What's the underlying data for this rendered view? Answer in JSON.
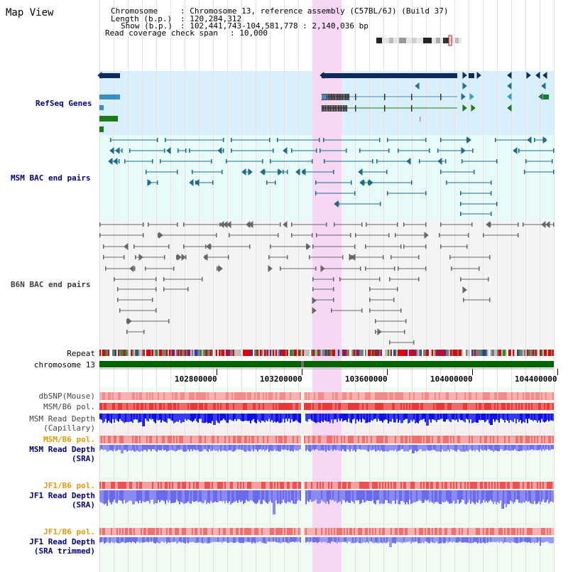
{
  "title": "Map View",
  "info": {
    "chromosome_key": "Chromosome",
    "chromosome_val": ": Chromosome 13, reference assembly (C57BL/6J) (Build 37)",
    "length_key": "Length (b.p.)",
    "length_val": ": 120,284,312",
    "show_key": "Show (b.p.)",
    "show_val": ": 102,441,743-104,581,778 : 2,140,036 bp",
    "coverage_key": "Read coverage check span",
    "coverage_val": ": 10,000"
  },
  "tracks": {
    "refseq": "RefSeq Genes",
    "msm_bac": "MSM BAC end pairs",
    "b6n_bac": "B6N BAC end pairs",
    "repeat": "Repeat",
    "chromosome": "chromosome 13",
    "dbsnp": "dbSNP(Mouse)",
    "msm_b6_pol_1": "MSM/B6 pol.",
    "msm_read_depth_cap_1": "MSM Read Depth",
    "msm_read_depth_cap_2": "(Capillary)",
    "msm_b6_pol_2": "MSM/B6 pol.",
    "msm_read_depth_sra_1": "MSM Read Depth",
    "msm_read_depth_sra_2": "(SRA)",
    "jf1_b6_pol_1": "JF1/B6 pol.",
    "jf1_read_depth_sra_1": "JF1 Read Depth",
    "jf1_read_depth_sra_2": "(SRA)",
    "jf1_b6_pol_2": "JF1/B6 pol.",
    "jf1_read_depth_trim_1": "JF1 Read Depth",
    "jf1_read_depth_trim_2": "(SRA trimmed)"
  },
  "axis_ticks": [
    "102800000",
    "103200000",
    "103600000",
    "104000000",
    "104400000"
  ],
  "colors": {
    "refseq_bg": "#d8f0fb",
    "msm_bg": "#e8fbfb",
    "b6n_bg": "#f4f4f4",
    "highlight": "#f6d8f4",
    "chrom_bar": "#006400",
    "gene_dark": "#0d2a5e",
    "gene_light": "#3a8ec0",
    "gene_green": "#1a7a1a",
    "bac_teal": "#1d6b87",
    "bac_gray": "#666666",
    "snp_red": "#f07070",
    "pol_red": "#e83030",
    "depth_blue": "#2020e0",
    "depth_lblue": "#8080f0"
  }
}
